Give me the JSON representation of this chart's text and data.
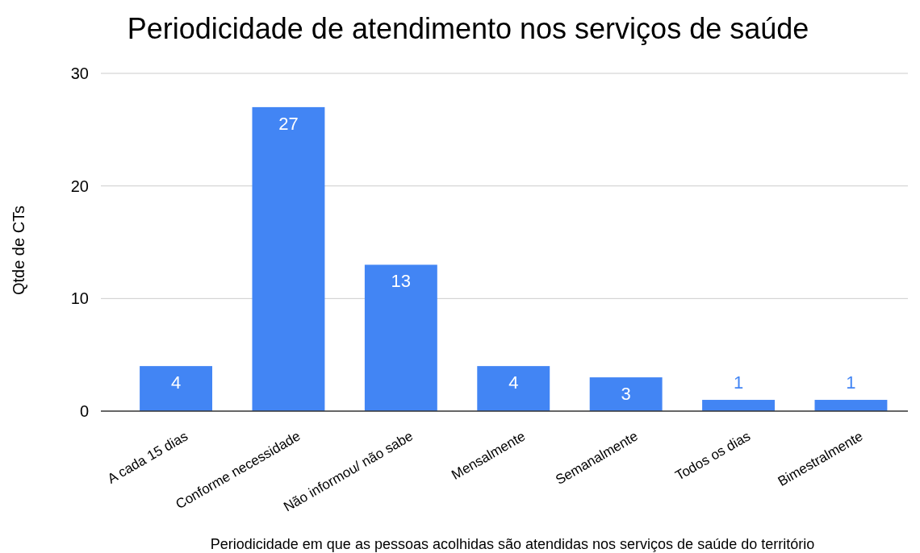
{
  "chart_data": {
    "type": "bar",
    "title": "Periodicidade de atendimento nos serviços de saúde",
    "xlabel": "Periodicidade em que as pessoas acolhidas são atendidas nos serviços de saúde do território",
    "ylabel": "Qtde de CTs",
    "categories": [
      "A cada 15 dias",
      "Conforme necessidade",
      "Não informou/ não sabe",
      "Mensalmente",
      "Semanalmente",
      "Todos os dias",
      "Bimestralmente"
    ],
    "values": [
      4,
      27,
      13,
      4,
      3,
      1,
      1
    ],
    "color": "#4285f4",
    "ylim": [
      0,
      30
    ],
    "yticks": [
      0,
      10,
      20,
      30
    ],
    "grid": "y",
    "data_labels": true
  }
}
